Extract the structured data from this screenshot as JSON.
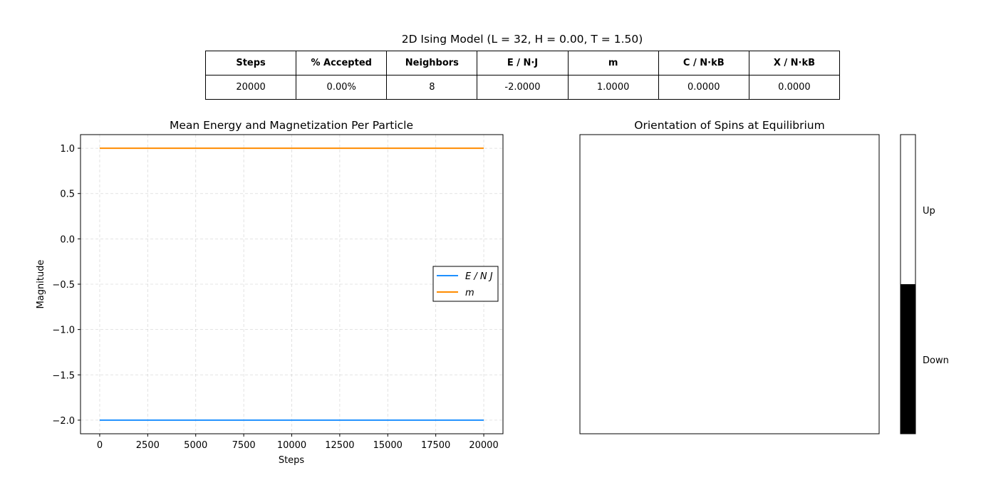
{
  "figure": {
    "title": "2D Ising Model (L = 32, H = 0.00, T = 1.50)"
  },
  "table": {
    "headers": [
      "Steps",
      "% Accepted",
      "Neighbors",
      "E / N·J",
      "m",
      "C / N·kB",
      "X / N·kB"
    ],
    "values": [
      "20000",
      "0.00%",
      "8",
      "-2.0000",
      "1.0000",
      "0.0000",
      "0.0000"
    ]
  },
  "chart_data": [
    {
      "type": "line",
      "title": "Mean Energy and Magnetization Per Particle",
      "xlabel": "Steps",
      "ylabel": "Magnitude",
      "xlim": [
        -1000,
        21000
      ],
      "ylim": [
        -2.15,
        1.15
      ],
      "xticks": [
        0,
        2500,
        5000,
        7500,
        10000,
        12500,
        15000,
        17500,
        20000
      ],
      "yticks": [
        1.0,
        0.5,
        0.0,
        -0.5,
        -1.0,
        -1.5,
        -2.0
      ],
      "ytick_labels": [
        "1.0",
        "0.5",
        "0.0",
        "−0.5",
        "−1.0",
        "−1.5",
        "−2.0"
      ],
      "grid": true,
      "legend_position": "center-right",
      "series": [
        {
          "name": "E / N J",
          "color": "#1e90ff",
          "x": [
            0,
            20000
          ],
          "y": [
            -2.0,
            -2.0
          ]
        },
        {
          "name": "m",
          "color": "#ff8c00",
          "x": [
            0,
            20000
          ],
          "y": [
            1.0,
            1.0
          ]
        }
      ]
    },
    {
      "type": "heatmap",
      "title": "Orientation of Spins at Equilibrium",
      "lattice_size": 32,
      "state": "all spins up",
      "colorbar": {
        "labels": [
          "Up",
          "Down"
        ],
        "colors": {
          "Up": "#ffffff",
          "Down": "#000000"
        }
      }
    }
  ]
}
